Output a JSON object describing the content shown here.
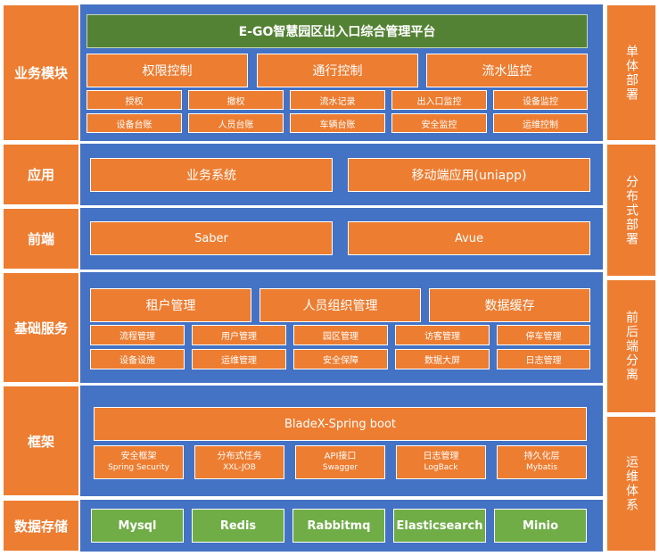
{
  "layers": {
    "business": "业务模块",
    "app": "应用",
    "frontend": "前端",
    "basic": "基础服务",
    "framework": "框架",
    "storage": "数据存储"
  },
  "deploy": {
    "single": "单体部署",
    "distributed": "分布式部署",
    "separation": "前后端分离",
    "ops": "运维体系"
  },
  "platform_title": "E-GO智慧园区出入口综合管理平台",
  "business": {
    "main": [
      "权限控制",
      "通行控制",
      "流水监控"
    ],
    "row1": [
      "授权",
      "撤权",
      "流水记录",
      "出入口监控",
      "设备监控"
    ],
    "row2": [
      "设备台账",
      "人员台账",
      "车辆台账",
      "安全监控",
      "运维控制"
    ]
  },
  "app": [
    "业务系统",
    "移动端应用(uniapp)"
  ],
  "frontend": [
    "Saber",
    "Avue"
  ],
  "basic": {
    "main": [
      "租户管理",
      "人员组织管理",
      "数据缓存"
    ],
    "row1": [
      "流程管理",
      "用户管理",
      "园区管理",
      "访客管理",
      "停车管理"
    ],
    "row2": [
      "设备设施",
      "运维管理",
      "安全保障",
      "数据大屏",
      "日志管理"
    ]
  },
  "framework": {
    "main": "BladeX-Spring boot",
    "items": [
      {
        "title": "安全框架",
        "sub": "Spring Security"
      },
      {
        "title": "分布式任务",
        "sub": "XXL-JOB"
      },
      {
        "title": "API接口",
        "sub": "Swagger"
      },
      {
        "title": "日志管理",
        "sub": "LogBack"
      },
      {
        "title": "持久化层",
        "sub": "Mybatis"
      }
    ]
  },
  "storage": [
    "Mysql",
    "Redis",
    "Rabbitmq",
    "Elasticsearch",
    "Minio"
  ]
}
